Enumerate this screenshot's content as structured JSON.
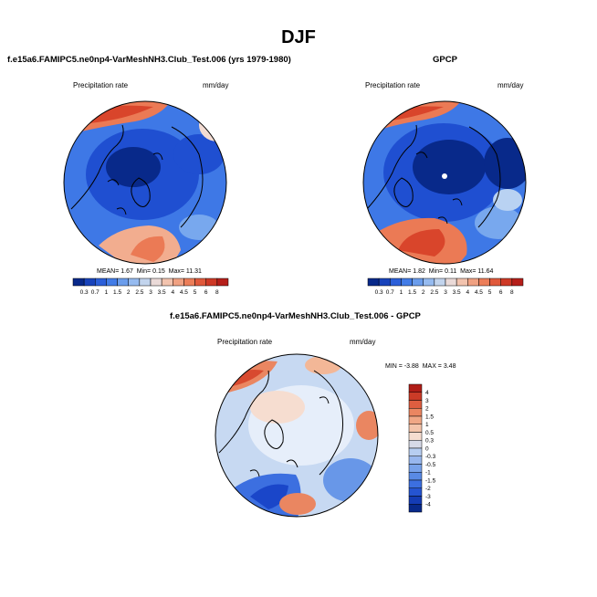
{
  "page": {
    "season_title": "DJF"
  },
  "colors": {
    "map_stops": [
      "#08298a",
      "#1f4fd1",
      "#3e78e6",
      "#78a8ee",
      "#b9d2f2",
      "#f3dcd3",
      "#f2ad8f",
      "#eb7a55",
      "#d9452b",
      "#b51f1a"
    ],
    "diff_stops": [
      "#08298a",
      "#1a46c9",
      "#3c6fe0",
      "#6897e8",
      "#98b7ee",
      "#c7d9f2",
      "#f6ddd0",
      "#f3b797",
      "#ea8661",
      "#d84a2f",
      "#b01d17"
    ],
    "arctic_white": "#ffffff"
  },
  "chart_data": [
    {
      "type": "heatmap",
      "projection": "north-polar-stereographic",
      "title": "f.e15a6.FAMIPC5.ne0np4-VarMeshNH3.Club_Test.006 (yrs 1979-1980)",
      "left_label": "Precipitation rate",
      "right_label": "mm/day",
      "stats": {
        "mean_label": "MEAN=",
        "mean": "1.67",
        "min_label": "Min=",
        "min": "0.15",
        "max_label": "Max=",
        "max": "11.31"
      },
      "colorbar": {
        "orientation": "horizontal",
        "labels": [
          "0.3",
          "0.7",
          "1",
          "1.5",
          "2",
          "2.5",
          "3",
          "3.5",
          "4",
          "4.5",
          "5",
          "6",
          "8"
        ]
      }
    },
    {
      "type": "heatmap",
      "projection": "north-polar-stereographic",
      "title": "GPCP",
      "left_label": "Precipitation rate",
      "right_label": "mm/day",
      "stats": {
        "mean_label": "MEAN=",
        "mean": "1.82",
        "min_label": "Min=",
        "min": "0.11",
        "max_label": "Max=",
        "max": "11.64"
      },
      "colorbar": {
        "orientation": "horizontal",
        "labels": [
          "0.3",
          "0.7",
          "1",
          "1.5",
          "2",
          "2.5",
          "3",
          "3.5",
          "4",
          "4.5",
          "5",
          "6",
          "8"
        ]
      }
    },
    {
      "type": "heatmap",
      "projection": "north-polar-stereographic",
      "title": "f.e15a6.FAMIPC5.ne0np4-VarMeshNH3.Club_Test.006 - GPCP",
      "left_label": "Precipitation rate",
      "right_label": "mm/day",
      "stats": {
        "min_label": "MIN =",
        "min": "-3.88",
        "max_label": "MAX =",
        "max": "3.48"
      },
      "colorbar": {
        "orientation": "vertical",
        "labels": [
          "4",
          "3",
          "2",
          "1.5",
          "1",
          "0.5",
          "0.3",
          "0",
          "-0.3",
          "-0.5",
          "-1",
          "-1.5",
          "-2",
          "-3",
          "-4"
        ]
      }
    }
  ]
}
